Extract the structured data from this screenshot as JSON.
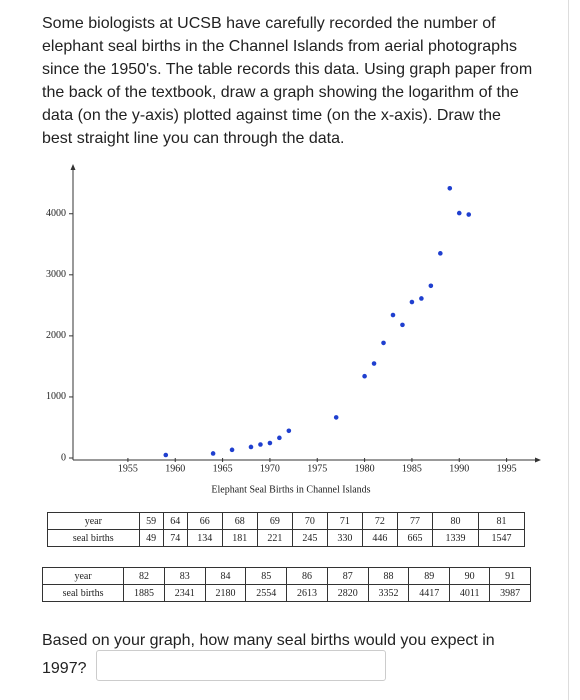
{
  "problem": "Some biologists at UCSB have carefully recorded the number of elephant seal births in the Channel Islands from aerial photographs since the 1950's. The table records this data. Using graph paper from the back of the textbook, draw a graph showing the logarithm of the data (on the y-axis) plotted against time (on the x-axis). Draw the best straight line you can through the data.",
  "chart_data": {
    "type": "scatter",
    "title": "Elephant Seal Births in Channel Islands",
    "x": [
      1959,
      1964,
      1966,
      1968,
      1969,
      1970,
      1971,
      1972,
      1977,
      1980,
      1981,
      1982,
      1983,
      1984,
      1985,
      1986,
      1987,
      1988,
      1989,
      1990,
      1991
    ],
    "y": [
      49,
      74,
      134,
      181,
      221,
      245,
      330,
      446,
      665,
      1339,
      1547,
      1885,
      2341,
      2180,
      2554,
      2613,
      2820,
      3352,
      4417,
      4011,
      3987
    ],
    "color": "#1f3fcf",
    "xlim": [
      1949.2,
      1998
    ],
    "ylim": [
      0,
      4700
    ],
    "xticks": [
      1955,
      1960,
      1965,
      1970,
      1975,
      1980,
      1985,
      1990,
      1995
    ],
    "yticks": [
      0,
      1000,
      2000,
      3000,
      4000
    ]
  },
  "tables": [
    {
      "rows": [
        [
          "year",
          "59",
          "64",
          "66",
          "68",
          "69",
          "70",
          "71",
          "72",
          "77",
          "80",
          "81"
        ],
        [
          "seal births",
          "49",
          "74",
          "134",
          "181",
          "221",
          "245",
          "330",
          "446",
          "665",
          "1339",
          "1547"
        ]
      ]
    },
    {
      "rows": [
        [
          "year",
          "82",
          "83",
          "84",
          "85",
          "86",
          "87",
          "88",
          "89",
          "90",
          "91"
        ],
        [
          "seal births",
          "1885",
          "2341",
          "2180",
          "2554",
          "2613",
          "2820",
          "3352",
          "4417",
          "4011",
          "3987"
        ]
      ]
    }
  ],
  "question": "Based on your graph, how many seal births would you expect in 1997?"
}
